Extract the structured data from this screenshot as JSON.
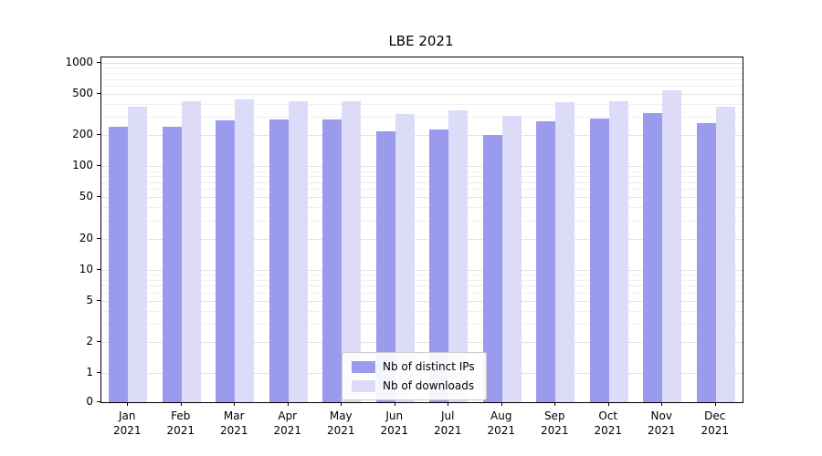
{
  "chart_data": {
    "type": "bar",
    "title": "LBE 2021",
    "categories": [
      "Jan",
      "Feb",
      "Mar",
      "Apr",
      "May",
      "Jun",
      "Jul",
      "Aug",
      "Sep",
      "Oct",
      "Nov",
      "Dec"
    ],
    "year_label": "2021",
    "series": [
      {
        "name": "Nb of distinct IPs",
        "color": "#9b9bed",
        "values": [
          240,
          240,
          280,
          285,
          285,
          220,
          225,
          200,
          275,
          290,
          330,
          260
        ]
      },
      {
        "name": "Nb of downloads",
        "color": "#dcdcf9",
        "values": [
          380,
          430,
          445,
          430,
          430,
          320,
          345,
          310,
          415,
          430,
          540,
          380
        ]
      }
    ],
    "yticks": [
      0,
      1,
      2,
      5,
      10,
      20,
      50,
      100,
      200,
      500,
      1000
    ],
    "yscale": "symlog",
    "ylim": [
      0,
      1100
    ],
    "grid": true,
    "legend_position": "lower center"
  }
}
